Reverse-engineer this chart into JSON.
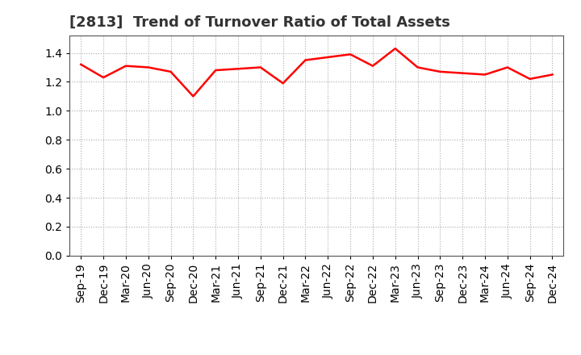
{
  "title": "[2813]  Trend of Turnover Ratio of Total Assets",
  "x_labels": [
    "Sep-19",
    "Dec-19",
    "Mar-20",
    "Jun-20",
    "Sep-20",
    "Dec-20",
    "Mar-21",
    "Jun-21",
    "Sep-21",
    "Dec-21",
    "Mar-22",
    "Jun-22",
    "Sep-22",
    "Dec-22",
    "Mar-23",
    "Jun-23",
    "Sep-23",
    "Dec-23",
    "Mar-24",
    "Jun-24",
    "Sep-24",
    "Dec-24"
  ],
  "values": [
    1.32,
    1.23,
    1.31,
    1.3,
    1.27,
    1.1,
    1.28,
    1.29,
    1.3,
    1.19,
    1.35,
    1.37,
    1.39,
    1.31,
    1.43,
    1.3,
    1.27,
    1.26,
    1.25,
    1.3,
    1.22,
    1.25
  ],
  "line_color": "#ff0000",
  "line_width": 1.8,
  "bg_color": "#ffffff",
  "plot_bg_color": "#ffffff",
  "grid_color": "#aaaaaa",
  "ylim": [
    0.0,
    1.52
  ],
  "yticks": [
    0.0,
    0.2,
    0.4,
    0.6,
    0.8,
    1.0,
    1.2,
    1.4
  ],
  "title_fontsize": 13,
  "title_fontweight": "bold",
  "tick_fontsize": 10,
  "spine_color": "#555555"
}
